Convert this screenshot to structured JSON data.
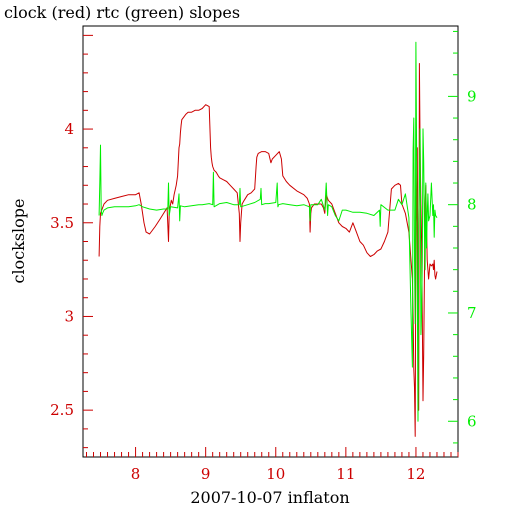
{
  "title": "clock (red) rtc (green) slopes",
  "colors": {
    "clock": "#cc0000",
    "rtc": "#00ee00",
    "frame": "#000000",
    "background": "#ffffff"
  },
  "chart_data": {
    "type": "line",
    "title": "clock (red) rtc (green) slopes",
    "xlabel": "2007-10-07 inflaton",
    "ylabel": "clockslope",
    "x_ticks": [
      "8",
      "9",
      "10",
      "11",
      "12"
    ],
    "y_left_ticks": [
      "2.5",
      "3",
      "3.5",
      "4"
    ],
    "y_right_ticks": [
      "6",
      "7",
      "8",
      "9"
    ],
    "xlim": [
      7.25,
      12.6
    ],
    "ylim_left": [
      2.25,
      4.55
    ],
    "ylim_right": [
      5.67,
      9.65
    ],
    "grid": false,
    "series": [
      {
        "name": "clock",
        "color": "#cc0000",
        "axis": "left",
        "x": [
          7.48,
          7.49,
          7.5,
          7.52,
          7.55,
          7.6,
          7.7,
          7.8,
          7.9,
          8.0,
          8.05,
          8.08,
          8.12,
          8.15,
          8.2,
          8.28,
          8.35,
          8.4,
          8.45,
          8.47,
          8.48,
          8.49,
          8.5,
          8.51,
          8.53,
          8.55,
          8.58,
          8.6,
          8.62,
          8.63,
          8.64,
          8.65,
          8.66,
          8.68,
          8.7,
          8.72,
          8.75,
          8.8,
          8.85,
          8.9,
          8.95,
          9.0,
          9.05,
          9.07,
          9.08,
          9.09,
          9.1,
          9.12,
          9.15,
          9.18,
          9.2,
          9.25,
          9.3,
          9.35,
          9.4,
          9.45,
          9.48,
          9.49,
          9.5,
          9.51,
          9.52,
          9.55,
          9.6,
          9.65,
          9.7,
          9.72,
          9.73,
          9.75,
          9.8,
          9.85,
          9.9,
          9.93,
          9.95,
          10.0,
          10.05,
          10.08,
          10.1,
          10.15,
          10.2,
          10.3,
          10.4,
          10.45,
          10.48,
          10.49,
          10.5,
          10.51,
          10.55,
          10.6,
          10.65,
          10.68,
          10.7,
          10.72,
          10.75,
          10.8,
          10.85,
          10.9,
          10.95,
          11.0,
          11.05,
          11.1,
          11.15,
          11.2,
          11.25,
          11.3,
          11.35,
          11.4,
          11.45,
          11.5,
          11.55,
          11.6,
          11.65,
          11.7,
          11.75,
          11.78,
          11.8,
          11.85,
          11.9,
          11.93,
          11.95,
          11.96,
          11.97,
          11.98,
          11.99,
          12.0,
          12.01,
          12.02,
          12.03,
          12.04,
          12.05,
          12.06,
          12.07,
          12.08,
          12.09,
          12.1,
          12.11,
          12.12,
          12.13,
          12.14,
          12.15,
          12.16,
          12.17,
          12.18,
          12.2,
          12.22,
          12.24,
          12.25,
          12.26,
          12.27,
          12.28,
          12.3
        ],
        "y": [
          3.32,
          3.48,
          3.55,
          3.57,
          3.6,
          3.62,
          3.63,
          3.64,
          3.65,
          3.65,
          3.66,
          3.6,
          3.5,
          3.45,
          3.44,
          3.48,
          3.52,
          3.55,
          3.58,
          3.4,
          3.55,
          3.58,
          3.6,
          3.62,
          3.6,
          3.65,
          3.7,
          3.75,
          3.9,
          3.92,
          3.98,
          4.02,
          4.05,
          4.06,
          4.07,
          4.08,
          4.09,
          4.09,
          4.1,
          4.1,
          4.11,
          4.13,
          4.12,
          3.9,
          3.85,
          3.82,
          3.8,
          3.78,
          3.77,
          3.75,
          3.74,
          3.73,
          3.72,
          3.7,
          3.68,
          3.66,
          3.55,
          3.4,
          3.5,
          3.55,
          3.6,
          3.62,
          3.65,
          3.66,
          3.68,
          3.8,
          3.85,
          3.87,
          3.88,
          3.88,
          3.87,
          3.82,
          3.84,
          3.86,
          3.88,
          3.84,
          3.75,
          3.72,
          3.7,
          3.67,
          3.65,
          3.63,
          3.6,
          3.45,
          3.55,
          3.58,
          3.6,
          3.6,
          3.6,
          3.58,
          3.55,
          3.65,
          3.62,
          3.6,
          3.55,
          3.5,
          3.48,
          3.47,
          3.45,
          3.5,
          3.45,
          3.4,
          3.38,
          3.34,
          3.32,
          3.33,
          3.35,
          3.36,
          3.4,
          3.45,
          3.68,
          3.7,
          3.71,
          3.7,
          3.6,
          3.55,
          3.45,
          3.3,
          3.2,
          3.0,
          2.72,
          2.62,
          2.36,
          3.5,
          3.7,
          3.9,
          3.2,
          2.5,
          4.35,
          3.9,
          3.6,
          3.4,
          3.0,
          2.55,
          2.8,
          3.2,
          3.6,
          3.7,
          3.5,
          3.3,
          3.25,
          3.2,
          3.28,
          3.27,
          3.28,
          3.25,
          3.3,
          3.22,
          3.2,
          3.24
        ]
      },
      {
        "name": "rtc",
        "color": "#00ee00",
        "axis": "right",
        "x": [
          7.48,
          7.49,
          7.5,
          7.51,
          7.52,
          7.53,
          7.55,
          7.6,
          7.7,
          7.8,
          7.9,
          8.0,
          8.05,
          8.1,
          8.2,
          8.3,
          8.4,
          8.46,
          8.47,
          8.48,
          8.5,
          8.6,
          8.62,
          8.63,
          8.64,
          8.7,
          8.8,
          8.9,
          8.95,
          9.05,
          9.1,
          9.11,
          9.12,
          9.2,
          9.3,
          9.4,
          9.48,
          9.49,
          9.5,
          9.6,
          9.7,
          9.78,
          9.79,
          9.8,
          9.85,
          9.9,
          10.0,
          10.02,
          10.03,
          10.04,
          10.1,
          10.2,
          10.3,
          10.4,
          10.48,
          10.49,
          10.5,
          10.6,
          10.65,
          10.7,
          10.72,
          10.74,
          10.75,
          10.8,
          10.85,
          10.9,
          10.95,
          11.0,
          11.05,
          11.1,
          11.2,
          11.3,
          11.4,
          11.48,
          11.49,
          11.5,
          11.6,
          11.7,
          11.75,
          11.8,
          11.85,
          11.9,
          11.93,
          11.95,
          11.96,
          11.97,
          11.98,
          11.99,
          12.0,
          12.01,
          12.02,
          12.03,
          12.04,
          12.05,
          12.06,
          12.07,
          12.08,
          12.09,
          12.1,
          12.11,
          12.12,
          12.13,
          12.14,
          12.15,
          12.16,
          12.17,
          12.18,
          12.2,
          12.22,
          12.24,
          12.25,
          12.26,
          12.27,
          12.28,
          12.3
        ],
        "y": [
          7.9,
          8.2,
          8.55,
          7.95,
          7.9,
          7.92,
          7.95,
          7.97,
          7.98,
          7.98,
          7.98,
          7.99,
          8.0,
          7.98,
          7.96,
          7.95,
          7.96,
          7.96,
          8.2,
          7.9,
          7.98,
          7.97,
          8.1,
          7.85,
          7.99,
          7.98,
          7.99,
          8.0,
          8.0,
          8.01,
          8.0,
          8.3,
          7.98,
          8.01,
          8.02,
          8.0,
          8.0,
          8.15,
          7.98,
          8.0,
          8.02,
          8.05,
          8.15,
          8.0,
          8.01,
          8.01,
          8.02,
          8.2,
          7.98,
          8.0,
          8.01,
          8.0,
          7.99,
          8.0,
          7.98,
          7.85,
          8.0,
          8.0,
          8.05,
          7.95,
          8.2,
          7.9,
          8.0,
          7.98,
          7.9,
          7.85,
          7.95,
          7.95,
          7.94,
          7.93,
          7.93,
          7.92,
          7.9,
          7.95,
          7.8,
          8.0,
          7.95,
          7.95,
          8.05,
          8.0,
          8.1,
          7.88,
          7.0,
          6.5,
          8.5,
          8.8,
          7.5,
          6.9,
          9.5,
          8.5,
          7.2,
          6.0,
          7.8,
          8.2,
          8.7,
          6.8,
          7.0,
          7.5,
          8.7,
          8.4,
          7.8,
          7.4,
          8.2,
          7.6,
          7.9,
          8.1,
          7.85,
          7.9,
          8.2,
          7.9,
          8.0,
          7.7,
          7.95,
          7.9,
          7.88
        ]
      }
    ]
  }
}
